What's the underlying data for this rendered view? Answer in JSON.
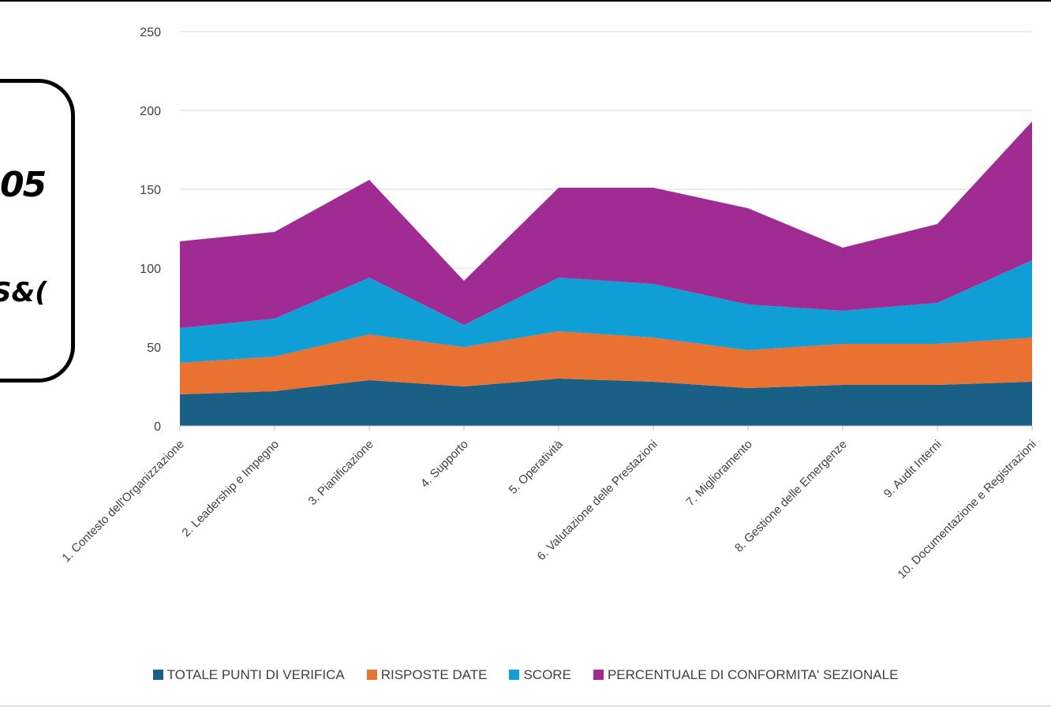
{
  "callout": {
    "line1": "05",
    "line2": "S&("
  },
  "colors": {
    "totale": "#1a5f85",
    "risposte": "#e97132",
    "score": "#0f9ed5",
    "percentuale": "#a02b93",
    "grid": "#d9d9d9",
    "axis": "#bfbfbf"
  },
  "chart_data": {
    "type": "area",
    "stacked": true,
    "title": "",
    "xlabel": "",
    "ylabel": "",
    "ylim": [
      0,
      250
    ],
    "yticks": [
      0,
      50,
      100,
      150,
      200,
      250
    ],
    "grid": true,
    "legend_position": "bottom",
    "categories": [
      "1. Contesto dell'Organizzazione",
      "2. Leadership e Impegno",
      "3. Pianificazione",
      "4. Supporto",
      "5. Operatività",
      "6. Valutazione delle Prestazioni",
      "7. Miglioramento",
      "8. Gestione delle Emergenze",
      "9. Audit Interni",
      "10. Documentazione e Registrazioni"
    ],
    "series": [
      {
        "name": "TOTALE PUNTI DI VERIFICA",
        "color": "#1a5f85",
        "values": [
          20,
          22,
          29,
          25,
          30,
          28,
          24,
          26,
          26,
          28
        ]
      },
      {
        "name": "RISPOSTE DATE",
        "color": "#e97132",
        "values": [
          20,
          22,
          29,
          25,
          30,
          28,
          24,
          26,
          26,
          28
        ]
      },
      {
        "name": "SCORE",
        "color": "#0f9ed5",
        "values": [
          22,
          24,
          36,
          14,
          34,
          34,
          29,
          21,
          26,
          49
        ]
      },
      {
        "name": "PERCENTUALE DI CONFORMITA' SEZIONALE",
        "color": "#a02b93",
        "values": [
          55,
          55,
          62,
          28,
          57,
          61,
          61,
          40,
          50,
          88
        ]
      }
    ]
  }
}
